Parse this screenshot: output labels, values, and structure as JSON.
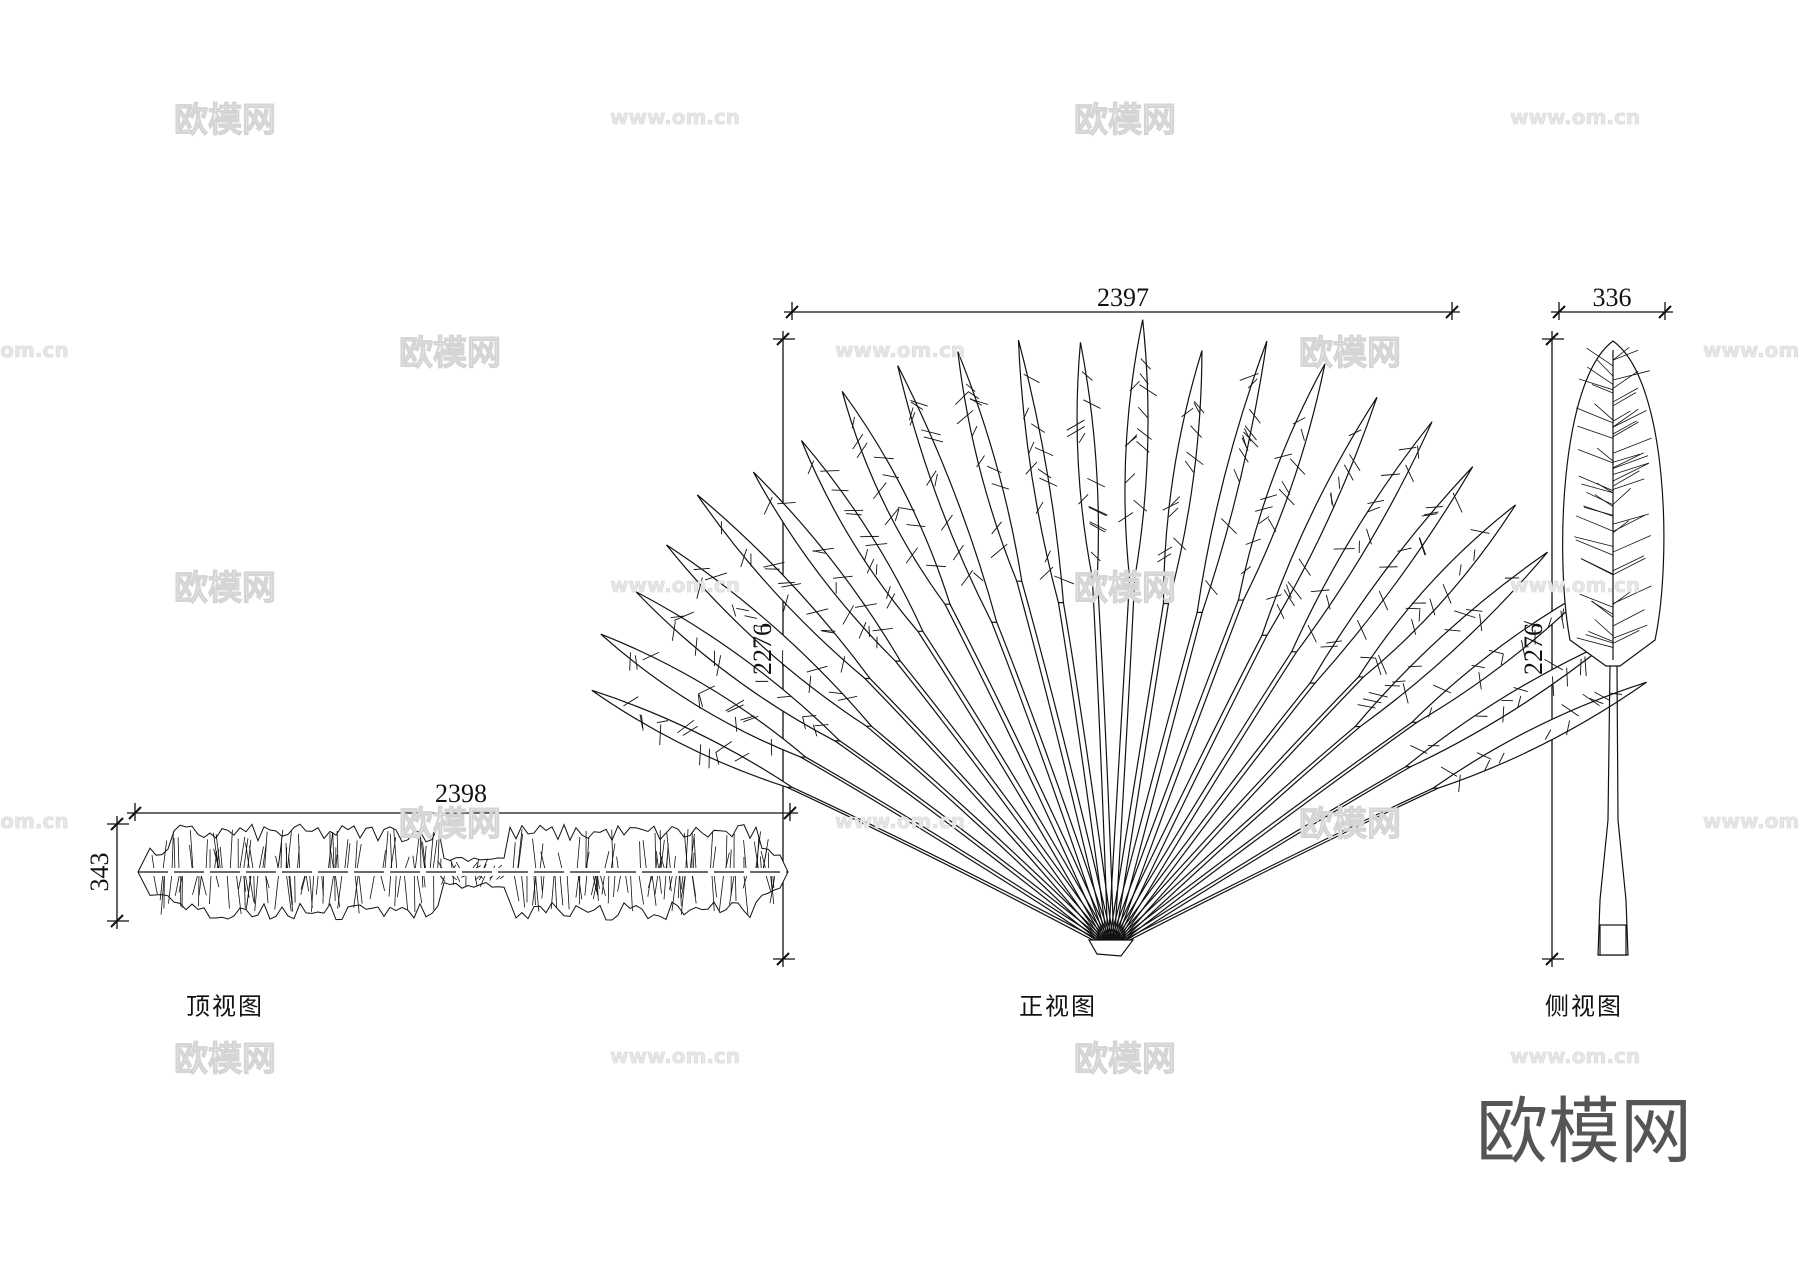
{
  "views": {
    "top": {
      "label": "顶视图",
      "width_dim": "2398",
      "depth_dim": "343"
    },
    "front": {
      "label": "正视图",
      "width_dim": "2397",
      "height_dim": "2276"
    },
    "side": {
      "label": "侧视图",
      "width_dim": "336",
      "height_dim": "2276"
    }
  },
  "watermarks": {
    "brand": "欧模网",
    "url": "www.om.cn",
    "url_partial": "om.cn"
  },
  "logo": {
    "text": "欧模网",
    "color": "#555555"
  },
  "colors": {
    "line": "#111111",
    "watermark": "#e2e2e2"
  }
}
